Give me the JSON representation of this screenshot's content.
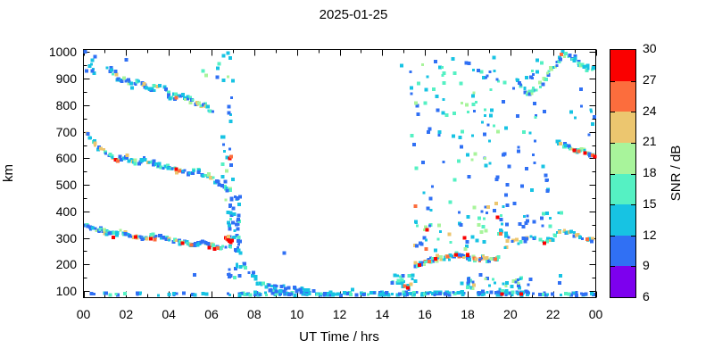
{
  "chart_data": {
    "type": "scatter",
    "title": "2025-01-25",
    "xlabel": "UT Time / hrs",
    "ylabel": "km",
    "grid": false,
    "x_range": [
      0,
      24
    ],
    "y_range": [
      75,
      1010
    ],
    "x_major_ticks": [
      0,
      2,
      4,
      6,
      8,
      10,
      12,
      14,
      16,
      18,
      20,
      22,
      24
    ],
    "x_tick_labels": [
      "00",
      "02",
      "04",
      "06",
      "08",
      "10",
      "12",
      "14",
      "16",
      "18",
      "20",
      "22",
      "00"
    ],
    "x_minor_ticks": [
      1,
      3,
      5,
      7,
      9,
      11,
      13,
      15,
      17,
      19,
      21,
      23
    ],
    "y_major_ticks": [
      100,
      200,
      300,
      400,
      500,
      600,
      700,
      800,
      900,
      1000
    ],
    "y_tick_labels": [
      "100",
      "200",
      "300",
      "400",
      "500",
      "600",
      "700",
      "800",
      "900",
      "1000"
    ],
    "y_minor_ticks": [
      150,
      250,
      350,
      450,
      550,
      650,
      750,
      850,
      950
    ],
    "colorbar": {
      "label": "SNR / dB",
      "levels": [
        6,
        9,
        12,
        15,
        18,
        21,
        24,
        27,
        30
      ],
      "colors": [
        "#7d00ee",
        "#3070f4",
        "#17c3e3",
        "#55f1c3",
        "#a8f49b",
        "#ecc66f",
        "#fc6d3d",
        "#fa0000"
      ]
    },
    "traces": [
      {
        "name": "e-layer-night",
        "t": [
          0.1,
          6.7
        ],
        "km": [
          84,
          94
        ],
        "n": 22,
        "snr_pool": [
          10,
          10,
          13,
          13,
          16
        ]
      },
      {
        "name": "e-layer-morning",
        "t": [
          6.7,
          14.5
        ],
        "km": [
          84,
          95
        ],
        "n": 105,
        "snr_pool": [
          10,
          10,
          10,
          13,
          13,
          13,
          16
        ]
      },
      {
        "name": "e-layer-evening",
        "t": [
          14.5,
          23.9
        ],
        "km": [
          84,
          96
        ],
        "n": 115,
        "snr_pool": [
          10,
          10,
          10,
          13,
          13,
          13,
          16
        ]
      },
      {
        "name": "upper-f-trace-descending",
        "waypoints": [
          [
            1.15,
            950
          ],
          [
            1.45,
            915
          ],
          [
            1.7,
            895
          ],
          [
            2.0,
            900
          ],
          [
            2.25,
            872
          ],
          [
            2.55,
            888
          ],
          [
            2.9,
            872
          ],
          [
            3.2,
            855
          ],
          [
            3.5,
            875
          ],
          [
            3.9,
            848
          ],
          [
            4.2,
            830
          ],
          [
            4.6,
            840
          ],
          [
            5.0,
            818
          ],
          [
            5.4,
            802
          ],
          [
            5.75,
            795
          ],
          [
            6.1,
            778
          ]
        ],
        "n": 80,
        "jitter_t": 0.09,
        "jitter_km": 9,
        "snr_pool": [
          10,
          10,
          10,
          13,
          13,
          13,
          16,
          16,
          19,
          22
        ]
      },
      {
        "name": "mid-f-trace-descending",
        "waypoints": [
          [
            0.1,
            700
          ],
          [
            0.35,
            668
          ],
          [
            0.65,
            645
          ],
          [
            0.95,
            625
          ],
          [
            1.25,
            610
          ],
          [
            1.55,
            596
          ],
          [
            1.9,
            603
          ],
          [
            2.2,
            593
          ],
          [
            2.5,
            584
          ],
          [
            2.85,
            597
          ],
          [
            3.2,
            588
          ],
          [
            3.55,
            574
          ],
          [
            3.9,
            566
          ],
          [
            4.25,
            556
          ],
          [
            4.6,
            550
          ],
          [
            4.95,
            546
          ],
          [
            5.25,
            556
          ],
          [
            5.6,
            540
          ],
          [
            5.95,
            528
          ],
          [
            6.3,
            508
          ],
          [
            6.65,
            492
          ],
          [
            6.95,
            478
          ]
        ],
        "n": 95,
        "jitter_t": 0.08,
        "jitter_km": 8,
        "snr_pool": [
          10,
          10,
          10,
          13,
          13,
          16,
          16,
          19,
          13,
          22
        ]
      },
      {
        "name": "lower-f-trace-descending",
        "waypoints": [
          [
            0.1,
            350
          ],
          [
            0.4,
            340
          ],
          [
            0.75,
            332
          ],
          [
            1.1,
            320
          ],
          [
            1.45,
            316
          ],
          [
            1.8,
            322
          ],
          [
            2.15,
            308
          ],
          [
            2.5,
            304
          ],
          [
            2.85,
            299
          ],
          [
            3.2,
            308
          ],
          [
            3.55,
            304
          ],
          [
            3.9,
            297
          ],
          [
            4.25,
            290
          ],
          [
            4.6,
            283
          ],
          [
            4.95,
            278
          ],
          [
            5.3,
            276
          ],
          [
            5.65,
            283
          ],
          [
            6.0,
            270
          ],
          [
            6.35,
            263
          ],
          [
            6.7,
            258
          ]
        ],
        "n": 110,
        "jitter_t": 0.08,
        "jitter_km": 8,
        "snr_pool": [
          10,
          10,
          10,
          13,
          13,
          16,
          16,
          19,
          22,
          10
        ]
      },
      {
        "name": "sunrise-burst-high",
        "t": [
          6.45,
          7.05
        ],
        "km": [
          430,
          1000
        ],
        "n": 26,
        "snr_pool": [
          10,
          10,
          13,
          13,
          16,
          19
        ]
      },
      {
        "name": "sunrise-burst-low",
        "t": [
          6.75,
          7.35
        ],
        "km": [
          150,
          460
        ],
        "n": 55,
        "snr_pool": [
          10,
          10,
          10,
          13,
          13,
          16
        ]
      },
      {
        "name": "sunrise-descent-tail",
        "waypoints": [
          [
            7.1,
            320
          ],
          [
            7.3,
            265
          ],
          [
            7.5,
            215
          ],
          [
            7.75,
            175
          ],
          [
            8.1,
            140
          ],
          [
            8.6,
            118
          ],
          [
            9.2,
            103
          ],
          [
            10.2,
            96
          ]
        ],
        "n": 45,
        "jitter_t": 0.12,
        "jitter_km": 16,
        "snr_pool": [
          10,
          10,
          13,
          13,
          16
        ]
      },
      {
        "name": "daytime-bump-1",
        "t": [
          8.5,
          9.6
        ],
        "km": [
          95,
          128
        ],
        "n": 10,
        "snr_pool": [
          10,
          13
        ]
      },
      {
        "name": "daytime-bump-2",
        "t": [
          10.1,
          10.8
        ],
        "km": [
          94,
          110
        ],
        "n": 7,
        "snr_pool": [
          10,
          13
        ]
      },
      {
        "name": "pre-sunset-rise",
        "t": [
          14.4,
          15.6
        ],
        "km": [
          92,
          160
        ],
        "n": 22,
        "snr_pool": [
          10,
          13,
          13,
          16
        ]
      },
      {
        "name": "evening-diffuse-high",
        "t": [
          15.3,
          21.8
        ],
        "km": [
          440,
          960
        ],
        "n": 115,
        "snr_pool": [
          10,
          10,
          10,
          13,
          13,
          16,
          16,
          19
        ]
      },
      {
        "name": "evening-diffuse-mid",
        "t": [
          15.5,
          19.9
        ],
        "km": [
          250,
          440
        ],
        "n": 55,
        "snr_pool": [
          10,
          10,
          13,
          13,
          16,
          19,
          22
        ]
      },
      {
        "name": "evening-200km-trace",
        "waypoints": [
          [
            15.5,
            195
          ],
          [
            15.9,
            205
          ],
          [
            16.3,
            215
          ],
          [
            16.7,
            228
          ],
          [
            17.1,
            222
          ],
          [
            17.5,
            238
          ],
          [
            17.9,
            232
          ],
          [
            18.3,
            218
          ],
          [
            18.7,
            228
          ],
          [
            19.1,
            215
          ],
          [
            19.5,
            225
          ]
        ],
        "n": 70,
        "jitter_t": 0.1,
        "jitter_km": 9,
        "snr_pool": [
          10,
          13,
          13,
          16,
          16,
          19,
          22,
          22,
          25,
          10
        ]
      },
      {
        "name": "evening-low-cluster",
        "t": [
          17.7,
          21.0
        ],
        "km": [
          84,
          150
        ],
        "n": 40,
        "snr_pool": [
          10,
          10,
          13,
          13,
          16,
          19
        ]
      },
      {
        "name": "late-upper-band",
        "t": [
          19.3,
          22.5
        ],
        "km": [
          340,
          395
        ],
        "n": 18,
        "snr_pool": [
          10,
          10,
          13,
          16
        ]
      },
      {
        "name": "late-300km-trace",
        "waypoints": [
          [
            19.5,
            322
          ],
          [
            19.9,
            300
          ],
          [
            20.3,
            285
          ],
          [
            20.7,
            295
          ],
          [
            21.1,
            300
          ],
          [
            21.5,
            285
          ],
          [
            21.9,
            295
          ],
          [
            22.3,
            322
          ],
          [
            22.7,
            330
          ],
          [
            23.1,
            312
          ],
          [
            23.5,
            300
          ],
          [
            23.9,
            285
          ]
        ],
        "n": 50,
        "jitter_t": 0.1,
        "jitter_km": 9,
        "snr_pool": [
          10,
          10,
          13,
          13,
          16,
          22
        ]
      },
      {
        "name": "late-topside-peak",
        "waypoints": [
          [
            20.3,
            895
          ],
          [
            20.6,
            868
          ],
          [
            20.9,
            845
          ],
          [
            21.2,
            862
          ],
          [
            21.6,
            900
          ],
          [
            22.0,
            945
          ],
          [
            22.3,
            980
          ],
          [
            22.6,
            995
          ],
          [
            22.9,
            978
          ],
          [
            23.2,
            958
          ],
          [
            23.5,
            945
          ],
          [
            23.9,
            932
          ]
        ],
        "n": 60,
        "jitter_t": 0.09,
        "jitter_km": 11,
        "snr_pool": [
          10,
          10,
          13,
          13,
          16,
          16,
          19
        ]
      },
      {
        "name": "late-600km-trace",
        "waypoints": [
          [
            22.2,
            665
          ],
          [
            22.5,
            650
          ],
          [
            22.8,
            640
          ],
          [
            23.1,
            628
          ],
          [
            23.4,
            630
          ],
          [
            23.7,
            618
          ],
          [
            23.98,
            602
          ]
        ],
        "n": 30,
        "jitter_t": 0.07,
        "jitter_km": 7,
        "snr_pool": [
          13,
          13,
          16,
          16,
          19,
          10,
          22
        ]
      },
      {
        "name": "late-700km-sparse",
        "t": [
          22.8,
          23.95
        ],
        "km": [
          680,
          820
        ],
        "n": 8,
        "snr_pool": [
          10,
          13
        ]
      },
      {
        "name": "late-900km-sparse",
        "t": [
          18.8,
          21.6
        ],
        "km": [
          850,
          1000
        ],
        "n": 10,
        "snr_pool": [
          10,
          13
        ]
      },
      {
        "name": "start-topside-sparse",
        "t": [
          0.05,
          0.6
        ],
        "km": [
          920,
          1005
        ],
        "n": 6,
        "snr_pool": [
          10,
          13
        ]
      }
    ],
    "points": [
      [
        1.5,
        594,
        28
      ],
      [
        1.62,
        589,
        25
      ],
      [
        2.05,
        612,
        22
      ],
      [
        4.35,
        560,
        28
      ],
      [
        4.5,
        553,
        25
      ],
      [
        6.85,
        600,
        28
      ],
      [
        6.92,
        606,
        25
      ],
      [
        1.4,
        302,
        28
      ],
      [
        2.45,
        303,
        28
      ],
      [
        3.15,
        297,
        28
      ],
      [
        3.35,
        294,
        25
      ],
      [
        4.65,
        280,
        28
      ],
      [
        5.05,
        273,
        25
      ],
      [
        5.9,
        263,
        28
      ],
      [
        6.15,
        258,
        28
      ],
      [
        6.3,
        261,
        25
      ],
      [
        6.66,
        300,
        28
      ],
      [
        6.72,
        297,
        25
      ],
      [
        6.78,
        293,
        28
      ],
      [
        6.84,
        288,
        28
      ],
      [
        6.9,
        284,
        28
      ],
      [
        6.96,
        291,
        28
      ],
      [
        6.8,
        306,
        22
      ],
      [
        4.35,
        828,
        25
      ],
      [
        2.85,
        880,
        22
      ],
      [
        1.9,
        902,
        19
      ],
      [
        15.05,
        118,
        25
      ],
      [
        15.2,
        112,
        28
      ],
      [
        15.35,
        126,
        22
      ],
      [
        15.75,
        198,
        28
      ],
      [
        16.2,
        212,
        25
      ],
      [
        16.5,
        222,
        28
      ],
      [
        17.05,
        230,
        25
      ],
      [
        17.45,
        236,
        28
      ],
      [
        18.0,
        234,
        28
      ],
      [
        18.9,
        225,
        22
      ],
      [
        19.3,
        220,
        25
      ],
      [
        15.55,
        420,
        25
      ],
      [
        16.1,
        330,
        28
      ],
      [
        17.85,
        300,
        28
      ],
      [
        16.05,
        258,
        25
      ],
      [
        19.4,
        378,
        28
      ],
      [
        19.6,
        88,
        28
      ],
      [
        20.5,
        88,
        28
      ],
      [
        18.3,
        122,
        22
      ],
      [
        19.55,
        315,
        25
      ],
      [
        21.6,
        281,
        28
      ],
      [
        22.3,
        322,
        22
      ],
      [
        23.1,
        310,
        22
      ],
      [
        23.6,
        295,
        25
      ],
      [
        23.0,
        630,
        28
      ],
      [
        23.2,
        627,
        25
      ],
      [
        23.5,
        620,
        28
      ],
      [
        23.85,
        612,
        25
      ],
      [
        23.95,
        607,
        28
      ],
      [
        22.4,
        992,
        25
      ],
      [
        0.08,
        1002,
        10
      ],
      [
        0.3,
        948,
        13
      ],
      [
        0.42,
        930,
        10
      ],
      [
        1.5,
        928,
        10
      ],
      [
        2.0,
        972,
        10
      ],
      [
        5.6,
        930,
        16
      ],
      [
        5.75,
        912,
        19
      ],
      [
        6.3,
        940,
        13
      ],
      [
        6.35,
        957,
        16
      ],
      [
        6.28,
        905,
        10
      ],
      [
        16.5,
        964,
        10
      ],
      [
        17.3,
        974,
        13
      ],
      [
        9.4,
        244,
        10
      ],
      [
        5.2,
        160,
        10
      ],
      [
        12.6,
        106,
        13
      ],
      [
        22.3,
        130,
        10
      ],
      [
        22.35,
        158,
        13
      ],
      [
        18.6,
        160,
        10
      ],
      [
        14.9,
        950,
        13
      ],
      [
        23.3,
        860,
        10
      ],
      [
        21.0,
        480,
        13
      ],
      [
        20.2,
        430,
        10
      ]
    ]
  }
}
